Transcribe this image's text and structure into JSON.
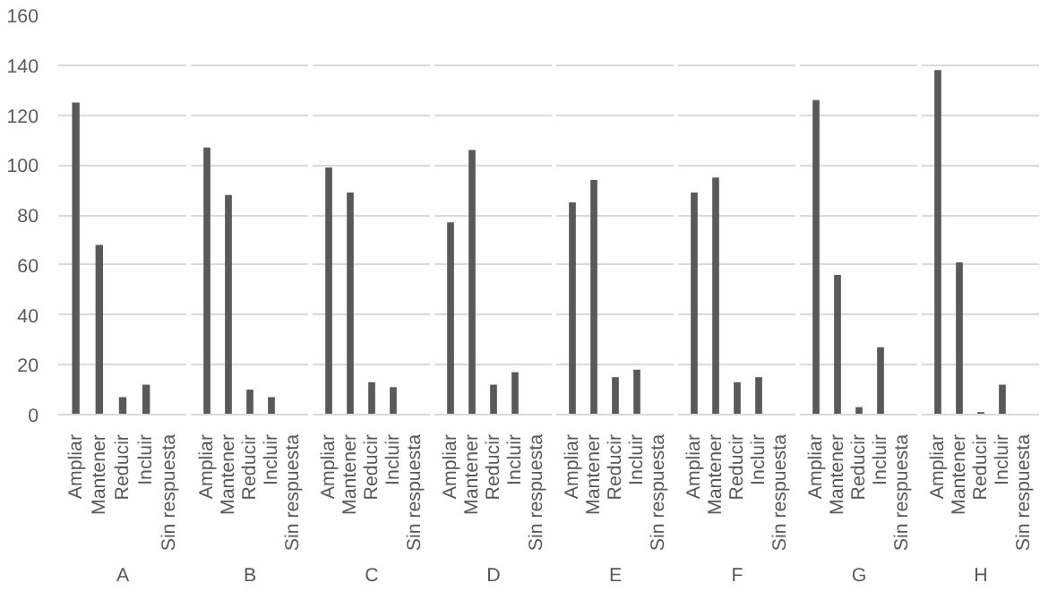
{
  "chart_data": [
    {
      "type": "bar",
      "xlabel": "A",
      "categories": [
        "Ampliar",
        "Mantener",
        "Reducir",
        "Incluir",
        "Sin respuesta"
      ],
      "values": [
        125,
        68,
        7,
        12,
        0
      ],
      "color": "#595959",
      "ylim": [
        0,
        160
      ],
      "yticks": [
        0,
        20,
        40,
        60,
        80,
        100,
        120,
        140,
        160
      ],
      "grid": "y"
    },
    {
      "type": "bar",
      "xlabel": "B",
      "categories": [
        "Ampliar",
        "Mantener",
        "Reducir",
        "Incluir",
        "Sin respuesta"
      ],
      "values": [
        107,
        88,
        10,
        7,
        0
      ],
      "color": "#595959",
      "ylim": [
        0,
        160
      ],
      "yticks": [
        0,
        20,
        40,
        60,
        80,
        100,
        120,
        140,
        160
      ],
      "grid": "y",
      "tick_labels": "x"
    },
    {
      "type": "bar",
      "xlabel": "C",
      "categories": [
        "Ampliar",
        "Mantener",
        "Reducir",
        "Incluir",
        "Sin respuesta"
      ],
      "values": [
        99,
        89,
        13,
        11,
        0
      ],
      "color": "#595959",
      "ylim": [
        0,
        160
      ],
      "yticks": [
        0,
        20,
        40,
        60,
        80,
        100,
        120,
        140,
        160
      ],
      "grid": "y",
      "tick_labels": "x"
    },
    {
      "type": "bar",
      "xlabel": "D",
      "categories": [
        "Ampliar",
        "Mantener",
        "Reducir",
        "Incluir",
        "Sin respuesta"
      ],
      "values": [
        77,
        106,
        12,
        17,
        0
      ],
      "color": "#595959",
      "ylim": [
        0,
        160
      ],
      "yticks": [
        0,
        20,
        40,
        60,
        80,
        100,
        120,
        140,
        160
      ],
      "grid": "y",
      "tick_labels": "x"
    },
    {
      "type": "bar",
      "xlabel": "E",
      "categories": [
        "Ampliar",
        "Mantener",
        "Reducir",
        "Incluir",
        "Sin respuesta"
      ],
      "values": [
        85,
        94,
        15,
        18,
        0
      ],
      "color": "#595959",
      "ylim": [
        0,
        160
      ],
      "yticks": [
        0,
        20,
        40,
        60,
        80,
        100,
        120,
        140,
        160
      ],
      "grid": "y",
      "tick_labels": "x"
    },
    {
      "type": "bar",
      "xlabel": "F",
      "categories": [
        "Ampliar",
        "Mantener",
        "Reducir",
        "Incluir",
        "Sin respuesta"
      ],
      "values": [
        89,
        95,
        13,
        15,
        0
      ],
      "color": "#595959",
      "ylim": [
        0,
        160
      ],
      "yticks": [
        0,
        20,
        40,
        60,
        80,
        100,
        120,
        140,
        160
      ],
      "grid": "y",
      "tick_labels": "x"
    },
    {
      "type": "bar",
      "xlabel": "G",
      "categories": [
        "Ampliar",
        "Mantener",
        "Reducir",
        "Incluir",
        "Sin respuesta"
      ],
      "values": [
        126,
        56,
        3,
        27,
        0
      ],
      "color": "#595959",
      "ylim": [
        0,
        160
      ],
      "yticks": [
        0,
        20,
        40,
        60,
        80,
        100,
        120,
        140,
        160
      ],
      "grid": "y",
      "tick_labels": "x"
    },
    {
      "type": "bar",
      "xlabel": "H",
      "categories": [
        "Ampliar",
        "Mantener",
        "Reducir",
        "Incluir",
        "Sin respuesta"
      ],
      "values": [
        138,
        61,
        1,
        12,
        0
      ],
      "color": "#595959",
      "ylim": [
        0,
        160
      ],
      "yticks": [
        0,
        20,
        40,
        60,
        80,
        100,
        120,
        140,
        160
      ],
      "grid": "y",
      "tick_labels": "x"
    }
  ]
}
